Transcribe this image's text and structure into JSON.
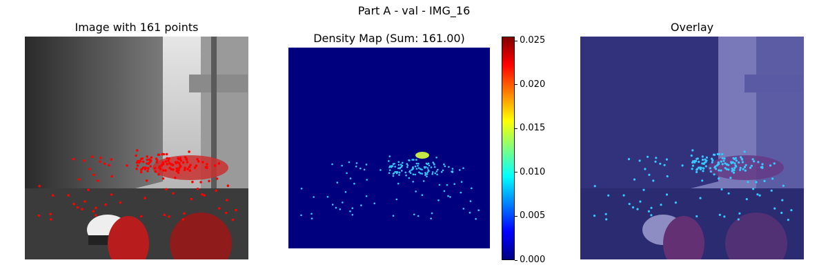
{
  "figure": {
    "suptitle": "Part A - val - IMG_16"
  },
  "panels": {
    "image": {
      "title": "Image with 161 points"
    },
    "density": {
      "title": "Density Map (Sum: 161.00)"
    },
    "overlay": {
      "title": "Overlay"
    }
  },
  "colors": {
    "jet_dark_blue": "#00007f",
    "overlay_tint": "#3d3d9e",
    "annotation_red": "#ff0000",
    "density_dot": "#38c8ff"
  },
  "chart_data": [
    {
      "type": "heatmap",
      "title": "Density Map (Sum: 161.00)",
      "colormap": "jet",
      "colorbar": {
        "min": 0.0,
        "max": 0.0255,
        "ticks": [
          0.0,
          0.005,
          0.01,
          0.015,
          0.02,
          0.025
        ],
        "tick_labels": [
          "0.000",
          "0.005",
          "0.010",
          "0.015",
          "0.020",
          "0.025"
        ]
      },
      "grid": false,
      "total_count": 161
    }
  ]
}
